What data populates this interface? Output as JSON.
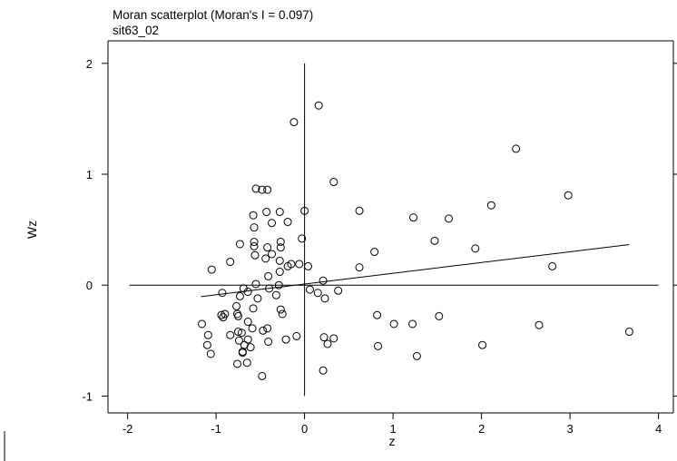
{
  "chart_data": {
    "type": "scatter",
    "title": "Moran scatterplot (Moran's I = 0.097)",
    "subtitle": "sit63_02",
    "xlabel": "z",
    "ylabel": "Wz",
    "xlim": [
      -2.2,
      4.3
    ],
    "ylim": [
      -1.15,
      2.2
    ],
    "xticks": [
      -2,
      -1,
      0,
      1,
      2,
      3,
      4
    ],
    "yticks": [
      -1,
      0,
      1,
      2
    ],
    "xtick_labels": [
      "-2",
      "-1",
      "0",
      "1",
      "2",
      "3",
      "4"
    ],
    "ytick_labels": [
      "-1",
      "0",
      "1",
      "2"
    ],
    "grid": false,
    "reference_lines": {
      "x": 0,
      "y": 0
    },
    "horizontal_line_range": [
      -1.98,
      4.0
    ],
    "vertical_line_range": [
      -1.0,
      2.0
    ],
    "regression_line": {
      "slope": 0.097,
      "intercept": 0.01,
      "x_range": [
        -1.17,
        3.67
      ]
    },
    "points": [
      {
        "x": 0.16,
        "y": 1.62
      },
      {
        "x": -0.12,
        "y": 1.47
      },
      {
        "x": 2.39,
        "y": 1.23
      },
      {
        "x": 0.33,
        "y": 0.93
      },
      {
        "x": -0.55,
        "y": 0.87
      },
      {
        "x": -0.48,
        "y": 0.86
      },
      {
        "x": -0.42,
        "y": 0.86
      },
      {
        "x": 2.98,
        "y": 0.81
      },
      {
        "x": 2.11,
        "y": 0.72
      },
      {
        "x": 0.0,
        "y": 0.67
      },
      {
        "x": 0.62,
        "y": 0.67
      },
      {
        "x": -0.43,
        "y": 0.66
      },
      {
        "x": -0.28,
        "y": 0.66
      },
      {
        "x": -0.58,
        "y": 0.63
      },
      {
        "x": 1.23,
        "y": 0.61
      },
      {
        "x": 1.63,
        "y": 0.6
      },
      {
        "x": -0.19,
        "y": 0.57
      },
      {
        "x": -0.37,
        "y": 0.56
      },
      {
        "x": -0.57,
        "y": 0.52
      },
      {
        "x": -0.03,
        "y": 0.42
      },
      {
        "x": 1.47,
        "y": 0.4
      },
      {
        "x": -0.57,
        "y": 0.39
      },
      {
        "x": -0.27,
        "y": 0.39
      },
      {
        "x": -0.73,
        "y": 0.37
      },
      {
        "x": -0.57,
        "y": 0.35
      },
      {
        "x": -0.42,
        "y": 0.34
      },
      {
        "x": -0.27,
        "y": 0.34
      },
      {
        "x": 1.93,
        "y": 0.33
      },
      {
        "x": 0.79,
        "y": 0.3
      },
      {
        "x": -0.37,
        "y": 0.28
      },
      {
        "x": -0.56,
        "y": 0.27
      },
      {
        "x": -0.44,
        "y": 0.24
      },
      {
        "x": -0.28,
        "y": 0.22
      },
      {
        "x": -0.84,
        "y": 0.21
      },
      {
        "x": -0.15,
        "y": 0.19
      },
      {
        "x": -0.06,
        "y": 0.19
      },
      {
        "x": -0.19,
        "y": 0.17
      },
      {
        "x": 0.04,
        "y": 0.17
      },
      {
        "x": 2.8,
        "y": 0.17
      },
      {
        "x": 0.62,
        "y": 0.16
      },
      {
        "x": -1.05,
        "y": 0.14
      },
      {
        "x": -0.28,
        "y": 0.12
      },
      {
        "x": -0.41,
        "y": 0.08
      },
      {
        "x": 0.21,
        "y": 0.04
      },
      {
        "x": -0.55,
        "y": 0.01
      },
      {
        "x": -0.29,
        "y": 0.0
      },
      {
        "x": -0.69,
        "y": -0.03
      },
      {
        "x": -0.4,
        "y": -0.03
      },
      {
        "x": 0.06,
        "y": -0.04
      },
      {
        "x": 0.38,
        "y": -0.05
      },
      {
        "x": -0.64,
        "y": -0.06
      },
      {
        "x": -0.93,
        "y": -0.07
      },
      {
        "x": 0.15,
        "y": -0.07
      },
      {
        "x": -0.32,
        "y": -0.09
      },
      {
        "x": -0.73,
        "y": -0.1
      },
      {
        "x": 0.23,
        "y": -0.12
      },
      {
        "x": -0.53,
        "y": -0.12
      },
      {
        "x": -0.77,
        "y": -0.19
      },
      {
        "x": -0.58,
        "y": -0.21
      },
      {
        "x": -0.27,
        "y": -0.22
      },
      {
        "x": -0.9,
        "y": -0.26
      },
      {
        "x": -0.76,
        "y": -0.26
      },
      {
        "x": -0.25,
        "y": -0.26
      },
      {
        "x": -0.94,
        "y": -0.27
      },
      {
        "x": 0.82,
        "y": -0.27
      },
      {
        "x": 1.52,
        "y": -0.28
      },
      {
        "x": -0.75,
        "y": -0.28
      },
      {
        "x": -0.92,
        "y": -0.29
      },
      {
        "x": -0.64,
        "y": -0.33
      },
      {
        "x": -1.16,
        "y": -0.35
      },
      {
        "x": 1.01,
        "y": -0.35
      },
      {
        "x": 1.22,
        "y": -0.35
      },
      {
        "x": 2.65,
        "y": -0.36
      },
      {
        "x": -0.59,
        "y": -0.39
      },
      {
        "x": -0.42,
        "y": -0.39
      },
      {
        "x": -0.47,
        "y": -0.41
      },
      {
        "x": -0.75,
        "y": -0.42
      },
      {
        "x": -0.71,
        "y": -0.43
      },
      {
        "x": 3.67,
        "y": -0.42
      },
      {
        "x": -1.09,
        "y": -0.45
      },
      {
        "x": -0.84,
        "y": -0.45
      },
      {
        "x": -0.09,
        "y": -0.46
      },
      {
        "x": 0.22,
        "y": -0.47
      },
      {
        "x": 0.33,
        "y": -0.48
      },
      {
        "x": -0.64,
        "y": -0.49
      },
      {
        "x": -0.21,
        "y": -0.49
      },
      {
        "x": -0.74,
        "y": -0.5
      },
      {
        "x": -0.41,
        "y": -0.51
      },
      {
        "x": -1.1,
        "y": -0.54
      },
      {
        "x": 0.26,
        "y": -0.53
      },
      {
        "x": -0.68,
        "y": -0.54
      },
      {
        "x": 2.01,
        "y": -0.54
      },
      {
        "x": 0.83,
        "y": -0.55
      },
      {
        "x": -0.61,
        "y": -0.56
      },
      {
        "x": -0.7,
        "y": -0.6
      },
      {
        "x": -1.06,
        "y": -0.62
      },
      {
        "x": -0.7,
        "y": -0.61
      },
      {
        "x": 1.27,
        "y": -0.64
      },
      {
        "x": -0.65,
        "y": -0.7
      },
      {
        "x": -0.76,
        "y": -0.71
      },
      {
        "x": 0.21,
        "y": -0.77
      },
      {
        "x": -0.48,
        "y": -0.82
      }
    ]
  }
}
